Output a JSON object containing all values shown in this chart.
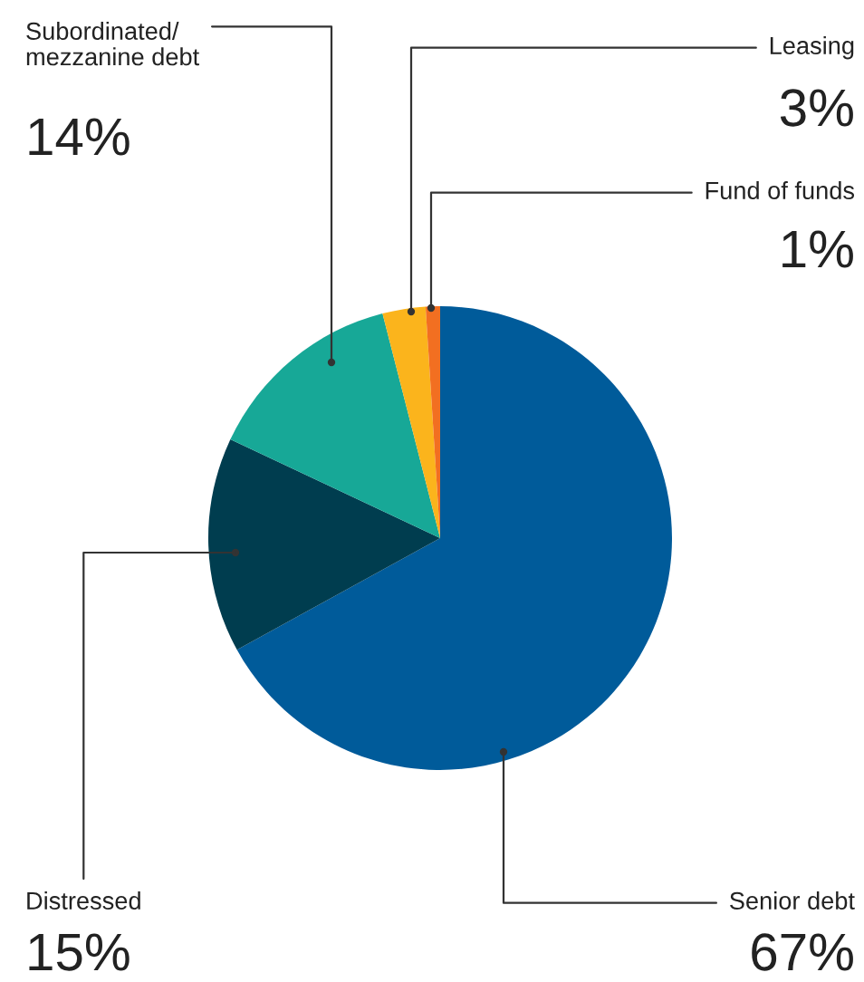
{
  "chart_data": {
    "type": "pie",
    "categories": [
      "Senior debt",
      "Distressed",
      "Subordinated/\nmezzanine debt",
      "Leasing",
      "Fund of funds"
    ],
    "values": [
      67,
      15,
      14,
      3,
      1
    ],
    "colors": [
      "#005b9a",
      "#003d4f",
      "#17a897",
      "#fbb41c",
      "#f26f21"
    ],
    "value_labels": [
      "67%",
      "15%",
      "14%",
      "3%",
      "1%"
    ],
    "legend": false
  }
}
